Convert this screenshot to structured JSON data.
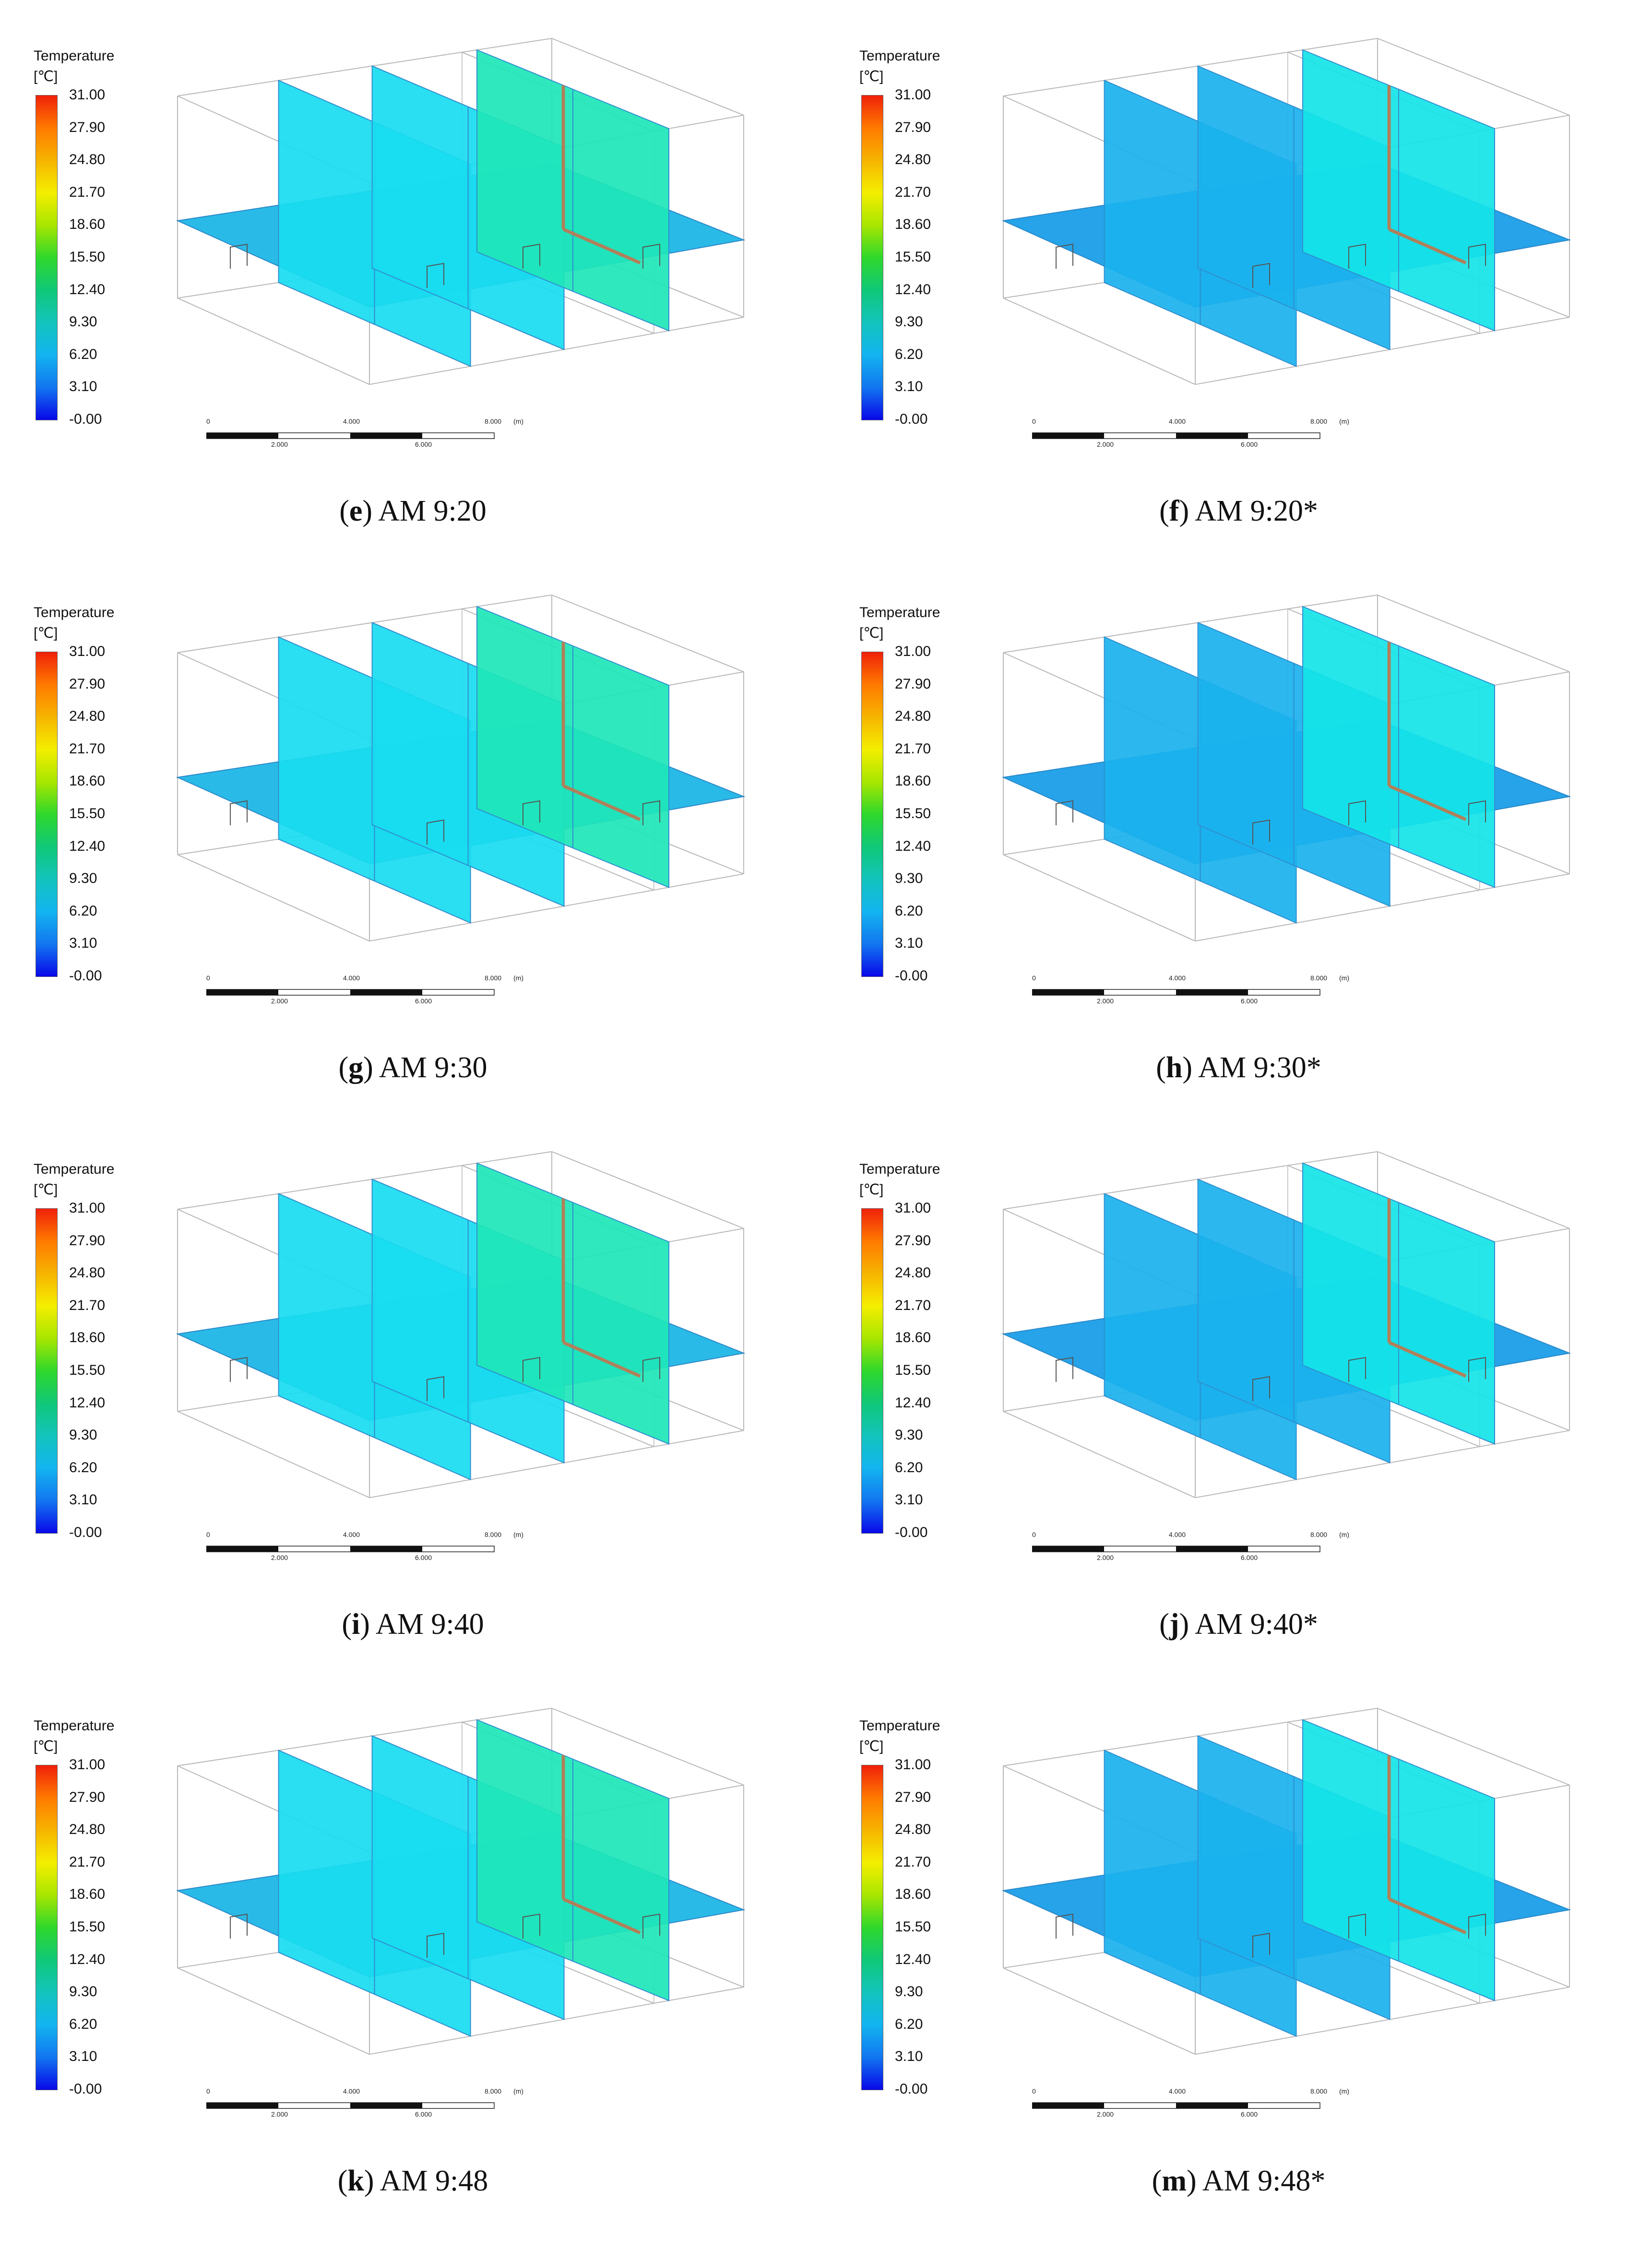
{
  "legend": {
    "title": "Temperature",
    "unit": "[℃]",
    "ticks": [
      "31.00",
      "27.90",
      "24.80",
      "21.70",
      "18.60",
      "15.50",
      "12.40",
      "9.30",
      "6.20",
      "3.10",
      "-0.00"
    ]
  },
  "scale_bar": {
    "top_labels": [
      "0",
      "4.000",
      "8.000",
      "(m)"
    ],
    "bottom_labels": [
      "2.000",
      "6.000"
    ]
  },
  "panels": [
    {
      "letter": "e",
      "time": "AM 9:20",
      "tone": "warm"
    },
    {
      "letter": "f",
      "time": "AM 9:20*",
      "tone": "cool"
    },
    {
      "letter": "g",
      "time": "AM 9:30",
      "tone": "warm"
    },
    {
      "letter": "h",
      "time": "AM 9:30*",
      "tone": "cool"
    },
    {
      "letter": "i",
      "time": "AM 9:40",
      "tone": "warm"
    },
    {
      "letter": "j",
      "time": "AM 9:40*",
      "tone": "cool"
    },
    {
      "letter": "k",
      "time": "AM 9:48",
      "tone": "warm"
    },
    {
      "letter": "m",
      "time": "AM 9:48*",
      "tone": "cool"
    }
  ],
  "colors": {
    "warm_floor": "#1fb6e6",
    "warm_wall": "#18dcf0",
    "warm_right": "#1ee6b8",
    "cool_floor": "#1a9ee8",
    "cool_wall": "#1ab2ee",
    "cool_right": "#14e4e8",
    "pipe": "#b0805a",
    "frame": "#b8b8b8"
  }
}
